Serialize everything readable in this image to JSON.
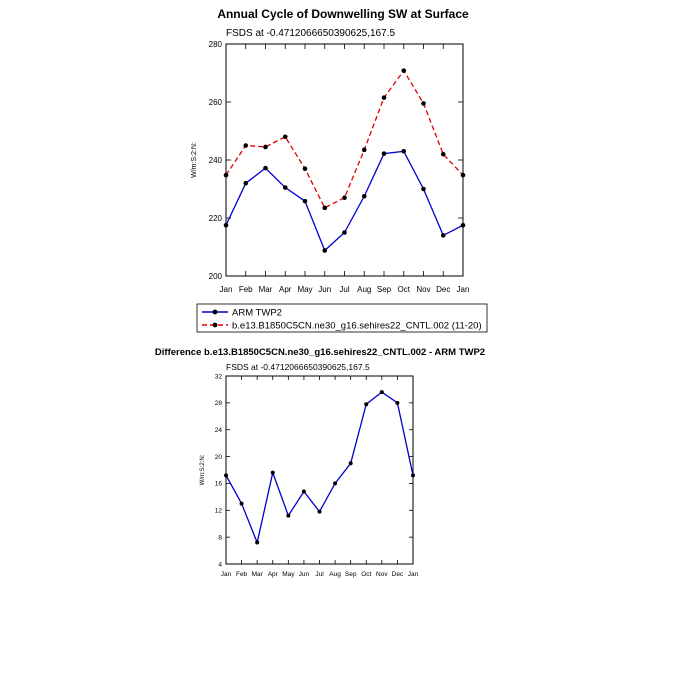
{
  "chart_data": [
    {
      "type": "line",
      "title": "Annual Cycle of Downwelling SW at Surface",
      "subtitle": "FSDS at -0.4712066650390625,167.5",
      "ylabel": "W/m:S:2:N:",
      "xlabel": "",
      "categories": [
        "Jan",
        "Feb",
        "Mar",
        "Apr",
        "May",
        "Jun",
        "Jul",
        "Aug",
        "Sep",
        "Oct",
        "Nov",
        "Dec",
        "Jan"
      ],
      "ylim": [
        200,
        280
      ],
      "yticks": [
        200,
        220,
        240,
        260,
        280
      ],
      "grid": false,
      "legend_placement": "below",
      "series": [
        {
          "name": "ARM TWP2",
          "color": "#0000cc",
          "dash": "solid",
          "values": [
            217.5,
            232.0,
            237.2,
            230.5,
            225.8,
            208.8,
            215.0,
            227.5,
            242.2,
            243.0,
            230.0,
            214.0,
            217.5
          ]
        },
        {
          "name": "b.e13.B1850C5CN.ne30_g16.sehires22_CNTL.002 (11-20)",
          "color": "#e00000",
          "dash": "dashed",
          "values": [
            234.8,
            245.0,
            244.5,
            248.0,
            237.0,
            223.5,
            227.0,
            243.5,
            261.5,
            270.8,
            259.5,
            242.0,
            234.8
          ]
        }
      ]
    },
    {
      "type": "line",
      "title": "Difference b.e13.B1850C5CN.ne30_g16.sehires22_CNTL.002 - ARM TWP2",
      "subtitle": "FSDS at -0.4712066650390625,167.5",
      "ylabel": "W/m:S:2:N:",
      "xlabel": "",
      "categories": [
        "Jan",
        "Feb",
        "Mar",
        "Apr",
        "May",
        "Jun",
        "Jul",
        "Aug",
        "Sep",
        "Oct",
        "Nov",
        "Dec",
        "Jan"
      ],
      "ylim": [
        4,
        32
      ],
      "yticks": [
        4,
        8,
        12,
        16,
        20,
        24,
        28,
        32
      ],
      "grid": false,
      "series": [
        {
          "name": "",
          "color": "#0000cc",
          "dash": "solid",
          "values": [
            17.2,
            13.0,
            7.2,
            17.6,
            11.2,
            14.8,
            11.8,
            16.0,
            19.0,
            27.8,
            29.6,
            28.0,
            17.2
          ]
        }
      ]
    }
  ]
}
